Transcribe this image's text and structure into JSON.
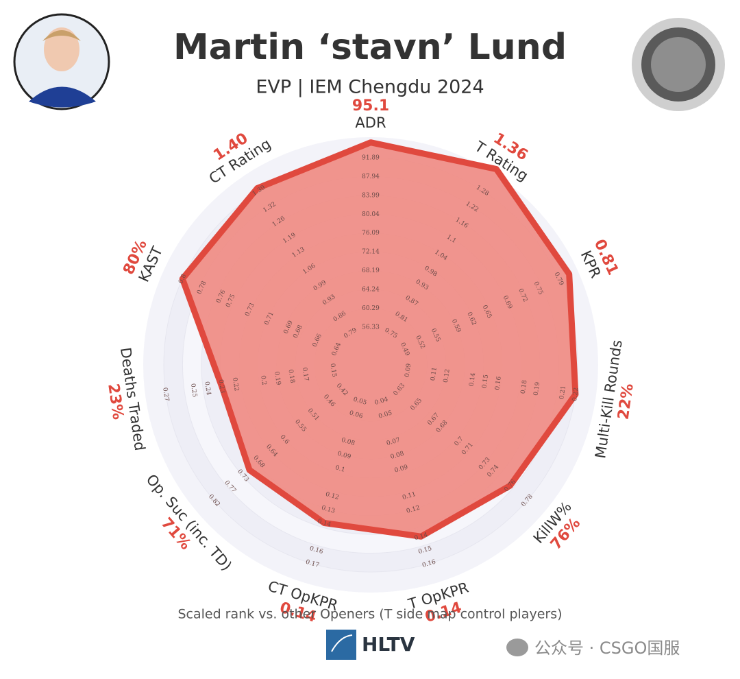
{
  "header": {
    "title": "Martin ‘stavn’ Lund",
    "subtitle": "EVP | IEM Chengdu 2024"
  },
  "chart_data": {
    "type": "radar",
    "color": "#e0493e",
    "fill": "#f08a82",
    "categories": [
      "ADR",
      "T Rating",
      "KPR",
      "Multi-Kill Rounds",
      "KillW%",
      "T OpKPR",
      "CT OpKPR",
      "Op. Suc (inc. TD)",
      "Deaths Traded",
      "KAST",
      "CT Rating"
    ],
    "values": [
      95.1,
      1.36,
      0.81,
      0.22,
      0.76,
      0.14,
      0.14,
      0.71,
      0.23,
      0.8,
      1.4
    ],
    "value_labels": [
      "95.1",
      "1.36",
      "0.81",
      "22%",
      "76%",
      "0.14",
      "0.14",
      "71%",
      "23%",
      "80%",
      "1.40"
    ],
    "axes": [
      {
        "lim": [
          56.33,
          91.89
        ],
        "ticks": [
          56.33,
          60.29,
          64.24,
          68.19,
          72.14,
          76.09,
          80.04,
          83.99,
          87.94,
          91.89
        ]
      },
      {
        "lim": [
          0.75,
          1.28
        ],
        "ticks": [
          0.75,
          0.81,
          0.87,
          0.93,
          0.98,
          1.04,
          1.1,
          1.16,
          1.22,
          1.28
        ]
      },
      {
        "lim": [
          0.49,
          0.79
        ],
        "ticks": [
          0.49,
          0.52,
          0.55,
          0.59,
          0.62,
          0.65,
          0.69,
          0.72,
          0.75,
          0.79
        ]
      },
      {
        "lim": [
          0.09,
          0.22
        ],
        "ticks": [
          0.09,
          0.11,
          0.12,
          0.14,
          0.15,
          0.16,
          0.18,
          0.19,
          0.21,
          0.22
        ]
      },
      {
        "lim": [
          0.63,
          0.78
        ],
        "ticks": [
          0.63,
          0.65,
          0.67,
          0.68,
          0.7,
          0.71,
          0.73,
          0.74,
          0.76,
          0.78
        ]
      },
      {
        "lim": [
          0.04,
          0.16
        ],
        "ticks": [
          0.04,
          0.05,
          0.07,
          0.08,
          0.09,
          0.11,
          0.12,
          0.14,
          0.15,
          0.16
        ]
      },
      {
        "lim": [
          0.05,
          0.17
        ],
        "ticks": [
          0.05,
          0.06,
          0.08,
          0.09,
          0.1,
          0.12,
          0.13,
          0.14,
          0.16,
          0.17
        ]
      },
      {
        "lim": [
          0.42,
          0.82
        ],
        "ticks": [
          0.42,
          0.46,
          0.51,
          0.55,
          0.6,
          0.64,
          0.68,
          0.73,
          0.77,
          0.82
        ]
      },
      {
        "lim": [
          0.15,
          0.27
        ],
        "ticks": [
          0.15,
          0.17,
          0.18,
          0.19,
          0.2,
          0.22,
          0.23,
          0.24,
          0.25,
          0.27
        ]
      },
      {
        "lim": [
          0.64,
          0.8
        ],
        "ticks": [
          0.64,
          0.66,
          0.68,
          0.69,
          0.71,
          0.73,
          0.75,
          0.76,
          0.78,
          0.8
        ]
      },
      {
        "lim": [
          0.79,
          1.39
        ],
        "ticks": [
          0.79,
          0.86,
          0.93,
          0.99,
          1.06,
          1.13,
          1.19,
          1.26,
          1.32,
          1.39
        ]
      }
    ],
    "note": "Scaled rank vs. other Openers (T side map control players)"
  },
  "branding": {
    "logo": "HLTV",
    "watermark": "公众号 · CSGO国服"
  }
}
